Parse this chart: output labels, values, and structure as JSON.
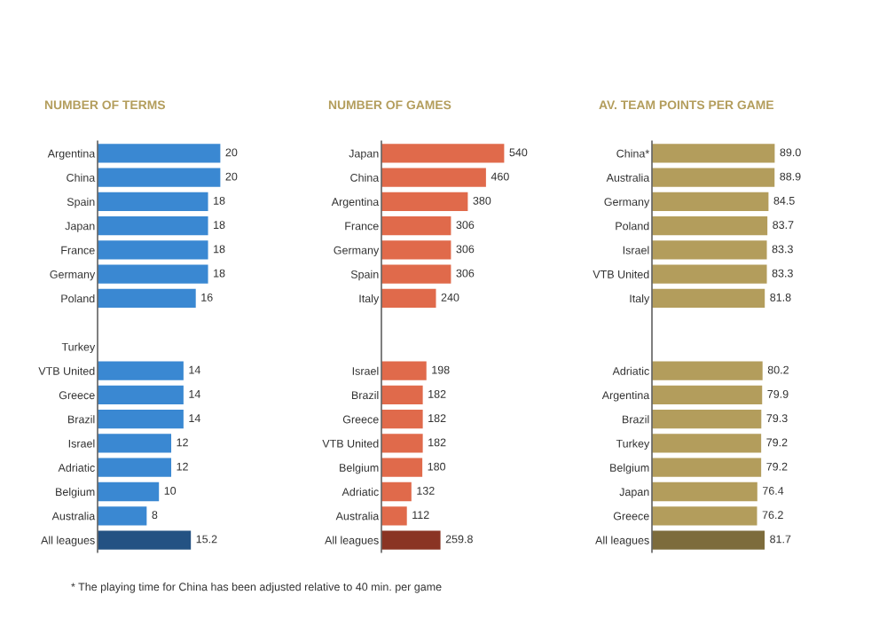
{
  "chart_data": [
    {
      "type": "bar",
      "orientation": "horizontal",
      "title": "NUMBER OF TERMS",
      "data_labels": true,
      "categories": [
        "Argentina",
        "China",
        "Spain",
        "Japan",
        "France",
        "Germany",
        "Poland",
        null,
        "Turkey",
        "VTB United",
        "Greece",
        "Brazil",
        "Israel",
        "Adriatic",
        "Belgium",
        "Australia",
        "All leagues"
      ],
      "values": [
        20,
        20,
        18,
        18,
        18,
        18,
        16,
        null,
        null,
        14,
        14,
        14,
        12,
        12,
        10,
        8,
        15.2
      ],
      "colors": [
        "#3a88d2",
        "#3a88d2",
        "#3a88d2",
        "#3a88d2",
        "#3a88d2",
        "#3a88d2",
        "#3a88d2",
        "#3a88d2",
        "#3a88d2",
        "#3a88d2",
        "#3a88d2",
        "#3a88d2",
        "#3a88d2",
        "#3a88d2",
        "#3a88d2",
        "#3a88d2",
        "#245283"
      ]
    },
    {
      "type": "bar",
      "orientation": "horizontal",
      "title": "NUMBER OF GAMES",
      "data_labels": true,
      "categories": [
        "Japan",
        "China",
        "Argentina",
        "France",
        "Germany",
        "Spain",
        "Italy",
        null,
        null,
        "Israel",
        "Brazil",
        "Greece",
        "VTB United",
        "Belgium",
        "Adriatic",
        "Australia",
        "All leagues"
      ],
      "values": [
        540,
        460,
        380,
        306,
        306,
        306,
        240,
        null,
        null,
        198,
        182,
        182,
        182,
        180,
        132,
        112,
        259.8
      ],
      "colors": [
        "#e06a4b",
        "#e06a4b",
        "#e06a4b",
        "#e06a4b",
        "#e06a4b",
        "#e06a4b",
        "#e06a4b",
        "#e06a4b",
        "#e06a4b",
        "#e06a4b",
        "#e06a4b",
        "#e06a4b",
        "#e06a4b",
        "#e06a4b",
        "#e06a4b",
        "#e06a4b",
        "#8a3424"
      ]
    },
    {
      "type": "bar",
      "orientation": "horizontal",
      "title": "AV. TEAM POINTS PER GAME",
      "value_labels": [
        "89.0",
        "88.9",
        "84.5",
        "83.7",
        "83.3",
        "83.3",
        "81.8",
        null,
        null,
        "80.2",
        "79.9",
        "79.3",
        "79.2",
        "79.2",
        "76.4",
        "76.2",
        "81.7"
      ],
      "categories": [
        "China*",
        "Australia",
        "Germany",
        "Poland",
        "Israel",
        "VTB United",
        "Italy",
        null,
        null,
        "Adriatic",
        "Argentina",
        "Brazil",
        "Turkey",
        "Belgium",
        "Japan",
        "Greece",
        "All leagues"
      ],
      "values": [
        89.0,
        88.9,
        84.5,
        83.7,
        83.3,
        83.3,
        81.8,
        null,
        null,
        80.2,
        79.9,
        79.3,
        79.2,
        79.2,
        76.4,
        76.2,
        81.7
      ],
      "colors": [
        "#b39d5c",
        "#b39d5c",
        "#b39d5c",
        "#b39d5c",
        "#b39d5c",
        "#b39d5c",
        "#b39d5c",
        "#b39d5c",
        "#b39d5c",
        "#b39d5c",
        "#b39d5c",
        "#b39d5c",
        "#b39d5c",
        "#b39d5c",
        "#b39d5c",
        "#b39d5c",
        "#7d6c3c"
      ],
      "annotations": [
        "* The playing time for China has been adjusted relative to 40 min. per game"
      ]
    }
  ]
}
